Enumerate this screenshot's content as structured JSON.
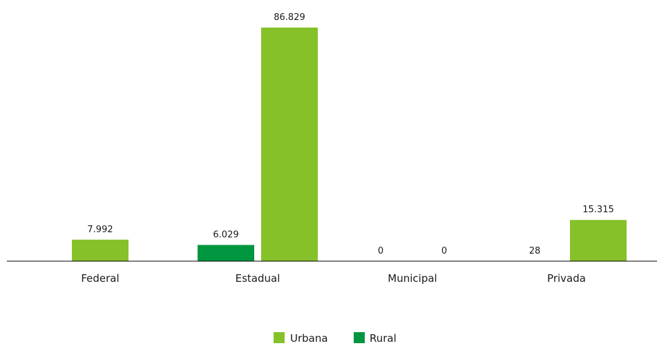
{
  "chart_data": {
    "type": "bar",
    "categories": [
      "Federal",
      "Estadual",
      "Municipal",
      "Privada"
    ],
    "series": [
      {
        "name": "Urbana",
        "color": "#86C12A",
        "values": [
          7992,
          86829,
          0,
          15315
        ],
        "labels": [
          "7.992",
          "86.829",
          "0",
          "15.315"
        ]
      },
      {
        "name": "Rural",
        "color": "#00963F",
        "values": [
          null,
          6029,
          0,
          28
        ],
        "labels": [
          null,
          "6.029",
          "0",
          "28"
        ]
      }
    ],
    "ylim": [
      0,
      86829
    ],
    "grid": false,
    "legend_position": "bottom-center"
  }
}
